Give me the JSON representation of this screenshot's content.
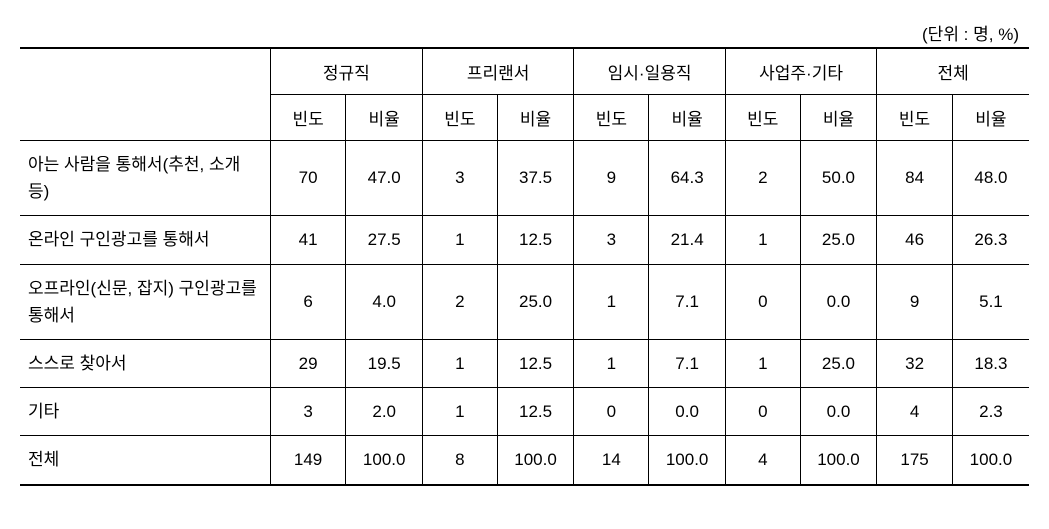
{
  "unit_label": "(단위 : 명, %)",
  "columns": {
    "row_header": "",
    "groups": [
      {
        "label": "정규직"
      },
      {
        "label": "프리랜서"
      },
      {
        "label": "임시·일용직"
      },
      {
        "label": "사업주·기타"
      },
      {
        "label": "전체"
      }
    ],
    "sub_labels": {
      "frequency": "빈도",
      "ratio": "비율"
    }
  },
  "rows": [
    {
      "label": "아는 사람을 통해서(추천, 소개 등)",
      "values": [
        "70",
        "47.0",
        "3",
        "37.5",
        "9",
        "64.3",
        "2",
        "50.0",
        "84",
        "48.0"
      ]
    },
    {
      "label": "온라인 구인광고를 통해서",
      "values": [
        "41",
        "27.5",
        "1",
        "12.5",
        "3",
        "21.4",
        "1",
        "25.0",
        "46",
        "26.3"
      ]
    },
    {
      "label": "오프라인(신문, 잡지) 구인광고를 통해서",
      "values": [
        "6",
        "4.0",
        "2",
        "25.0",
        "1",
        "7.1",
        "0",
        "0.0",
        "9",
        "5.1"
      ]
    },
    {
      "label": "스스로 찾아서",
      "values": [
        "29",
        "19.5",
        "1",
        "12.5",
        "1",
        "7.1",
        "1",
        "25.0",
        "32",
        "18.3"
      ]
    },
    {
      "label": "기타",
      "values": [
        "3",
        "2.0",
        "1",
        "12.5",
        "0",
        "0.0",
        "0",
        "0.0",
        "4",
        "2.3"
      ]
    },
    {
      "label": "전체",
      "values": [
        "149",
        "100.0",
        "8",
        "100.0",
        "14",
        "100.0",
        "4",
        "100.0",
        "175",
        "100.0"
      ]
    }
  ]
}
